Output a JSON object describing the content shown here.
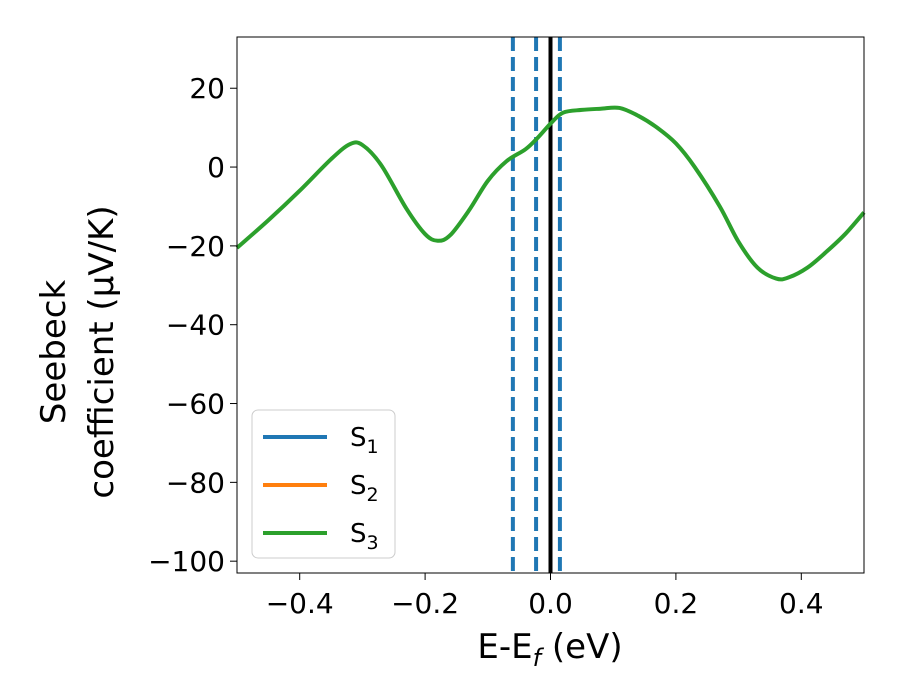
{
  "chart_data": {
    "type": "line",
    "xlabel": "E-E",
    "xlabel_sub": "f",
    "xlabel_unit": " (eV)",
    "ylabel_line1": "Seebeck",
    "ylabel_line2": "coefficient  (μV/K)",
    "xlim": [
      -0.5,
      0.5
    ],
    "ylim": [
      -103,
      33
    ],
    "x_ticks": [
      -0.4,
      -0.2,
      0.0,
      0.2,
      0.4
    ],
    "x_tick_labels": [
      "−0.4",
      "−0.2",
      "0.0",
      "0.2",
      "0.4"
    ],
    "y_ticks": [
      20,
      0,
      -20,
      -40,
      -60,
      -80,
      -100
    ],
    "y_tick_labels": [
      "20",
      "0",
      "−20",
      "−40",
      "−60",
      "−80",
      "−100"
    ],
    "grid": false,
    "legend_position": "lower-left",
    "series": [
      {
        "name": "S",
        "sub": "1",
        "color": "#1f77b4",
        "x": [],
        "y": []
      },
      {
        "name": "S",
        "sub": "2",
        "color": "#ff7f0e",
        "x": [],
        "y": []
      },
      {
        "name": "S",
        "sub": "3",
        "color": "#2ca02c",
        "x": [
          -0.5,
          -0.45,
          -0.4,
          -0.35,
          -0.32,
          -0.3,
          -0.27,
          -0.23,
          -0.2,
          -0.18,
          -0.16,
          -0.13,
          -0.1,
          -0.07,
          -0.04,
          -0.02,
          0.0,
          0.02,
          0.05,
          0.08,
          0.11,
          0.14,
          0.17,
          0.2,
          0.23,
          0.27,
          0.3,
          0.33,
          0.36,
          0.38,
          0.41,
          0.44,
          0.47,
          0.5
        ],
        "y": [
          -20.5,
          -13.5,
          -6,
          2,
          5.8,
          5.6,
          0.5,
          -10.5,
          -17,
          -18.7,
          -17.3,
          -11,
          -3.5,
          1.5,
          4.5,
          7.5,
          11,
          13.8,
          14.5,
          14.8,
          15,
          13,
          10,
          6,
          0,
          -10,
          -19,
          -25.5,
          -28.3,
          -28,
          -25.5,
          -21.5,
          -17,
          -11.5
        ]
      }
    ],
    "vertical_lines": [
      {
        "x": -0.06,
        "style": "dashed",
        "color": "#1f77b4"
      },
      {
        "x": -0.023,
        "style": "dashed",
        "color": "#1f77b4"
      },
      {
        "x": 0.0,
        "style": "solid",
        "color": "#000000"
      },
      {
        "x": 0.015,
        "style": "dashed",
        "color": "#1f77b4"
      }
    ]
  }
}
